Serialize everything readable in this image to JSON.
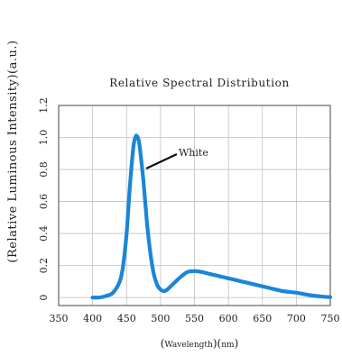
{
  "chart_data": {
    "type": "line",
    "title": "Relative Spectral Distribution",
    "ylabel": "(Relative Luminous Intensity)(a.u.)",
    "xlabel_main": "Wavelength",
    "xlabel_unit": "nm",
    "xlim": [
      350,
      750
    ],
    "ylim": [
      -0.05,
      1.2
    ],
    "xticks": [
      350,
      400,
      450,
      500,
      550,
      600,
      650,
      700,
      750
    ],
    "yticks": [
      0,
      0.2,
      0.4,
      0.6,
      0.8,
      1.0,
      1.2
    ],
    "ytick_labels": [
      "0",
      "0.2",
      "0.4",
      "0.6",
      "0.8",
      "1.0",
      "1.2"
    ],
    "grid": true,
    "series_color": "#1a86d8",
    "annotation": "White",
    "series": [
      {
        "x": [
          400,
          410,
          420,
          430,
          440,
          445,
          450,
          455,
          460,
          463,
          465,
          468,
          470,
          475,
          480,
          485,
          490,
          495,
          500,
          505,
          510,
          515,
          520,
          530,
          540,
          550,
          560,
          570,
          580,
          600,
          620,
          640,
          660,
          680,
          700,
          720,
          740,
          750
        ],
        "y": [
          0.0,
          0.0,
          0.01,
          0.03,
          0.1,
          0.2,
          0.4,
          0.7,
          0.94,
          1.0,
          1.01,
          0.98,
          0.92,
          0.72,
          0.47,
          0.28,
          0.15,
          0.08,
          0.05,
          0.04,
          0.05,
          0.07,
          0.09,
          0.13,
          0.16,
          0.165,
          0.16,
          0.15,
          0.14,
          0.12,
          0.1,
          0.08,
          0.06,
          0.04,
          0.03,
          0.015,
          0.005,
          0.003
        ]
      }
    ]
  }
}
